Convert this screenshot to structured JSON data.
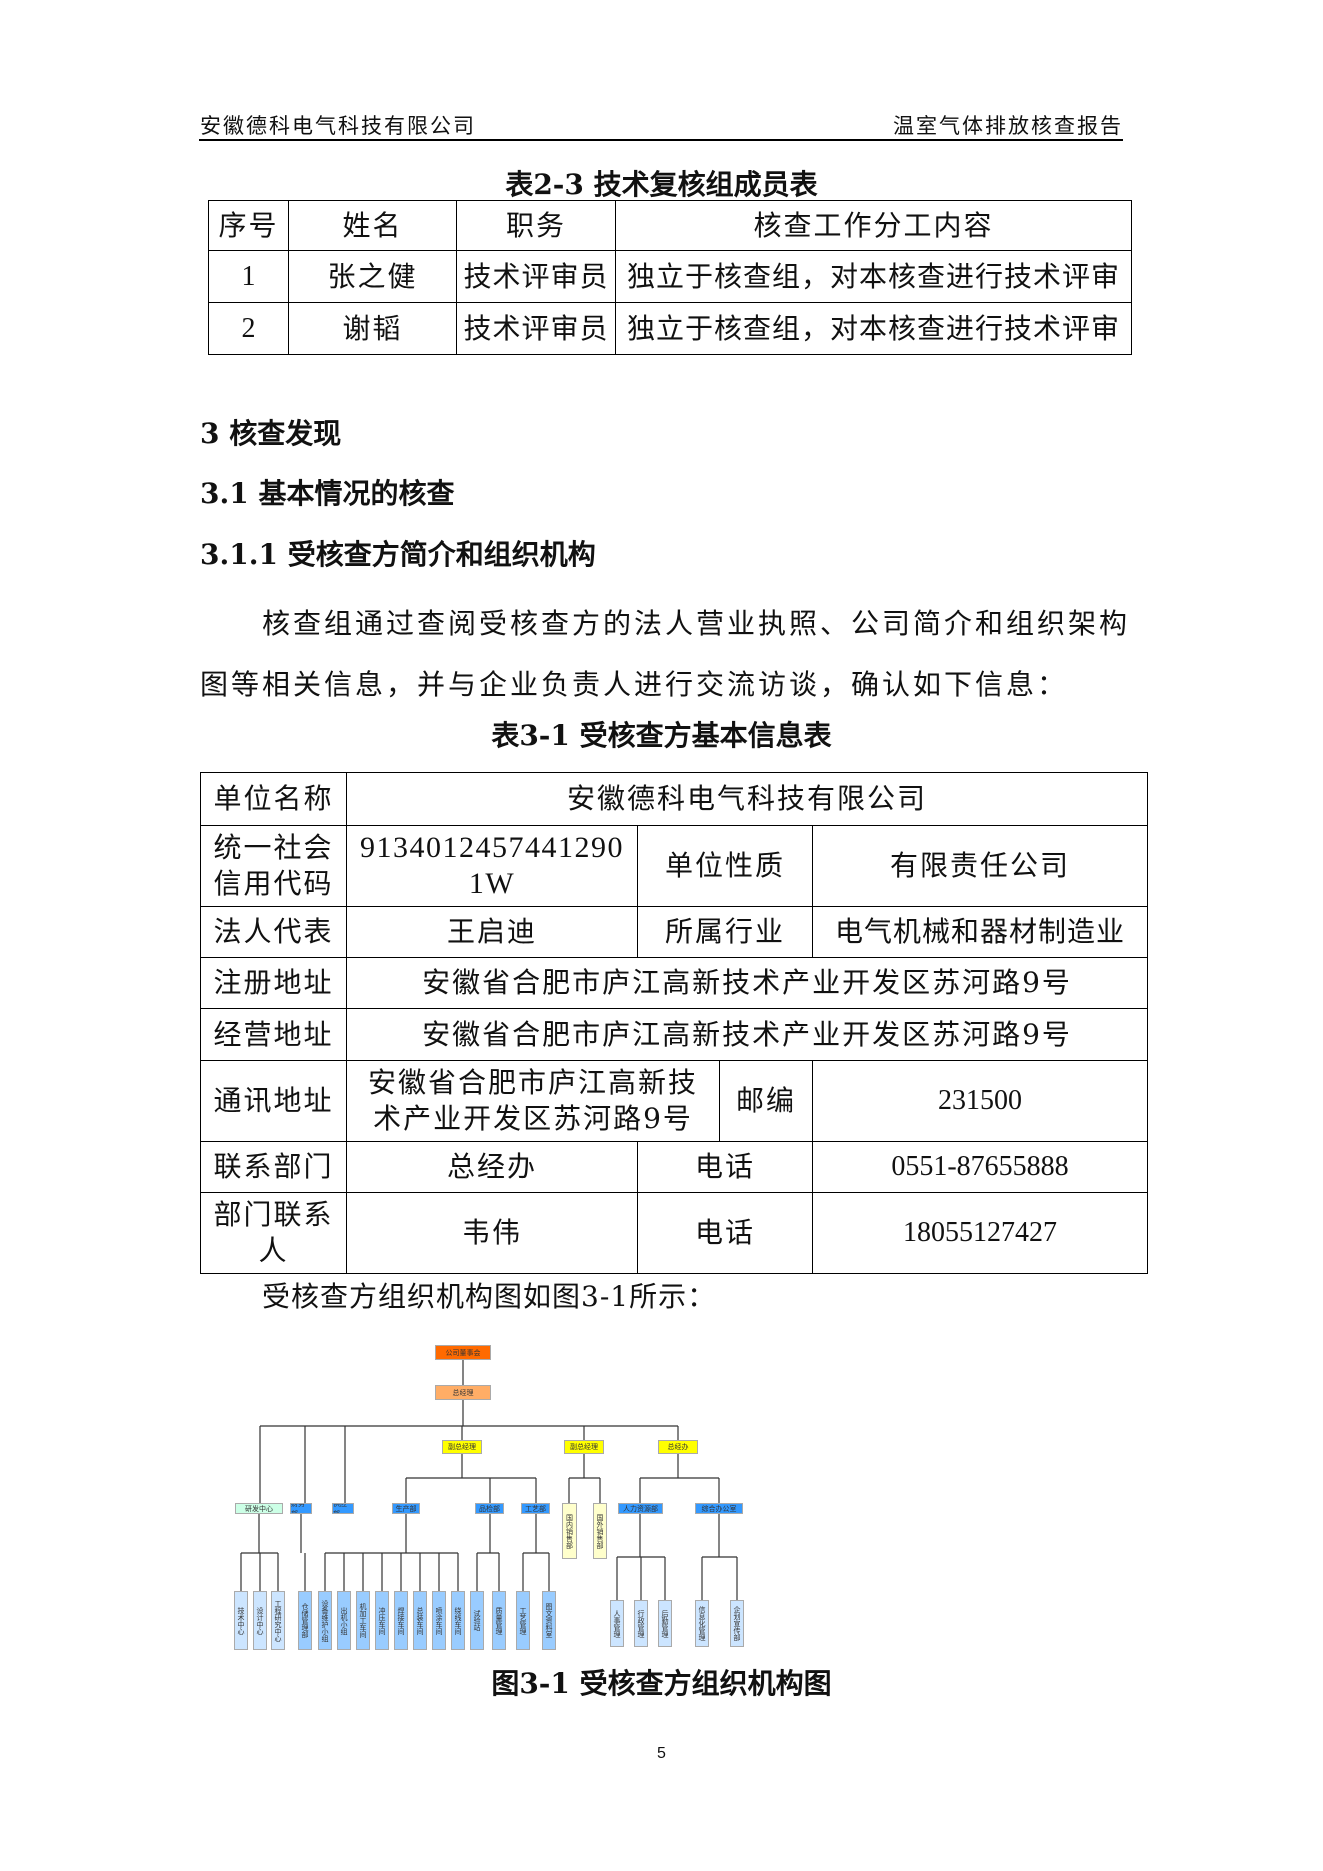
{
  "header": {
    "company": "安徽德科电气科技有限公司",
    "report": "温室气体排放核查报告"
  },
  "table23": {
    "caption": "表2-3  技术复核组成员表",
    "headers": [
      "序号",
      "姓名",
      "职务",
      "核查工作分工内容"
    ],
    "rows": [
      [
        "1",
        "张之健",
        "技术评审员",
        "独立于核查组，对本核查进行技术评审"
      ],
      [
        "2",
        "谢韬",
        "技术评审员",
        "独立于核查组，对本核查进行技术评审"
      ]
    ]
  },
  "sections": {
    "s3": "3  核查发现",
    "s31": "3.1  基本情况的核查",
    "s311": "3.1.1  受核查方简介和组织机构"
  },
  "para1": "核查组通过查阅受核查方的法人营业执照、公司简介和组织架构图等相关信息，并与企业负责人进行交流访谈，确认如下信息：",
  "table31": {
    "caption": "表3-1  受核查方基本信息表",
    "unit_name_label": "单位名称",
    "unit_name": "安徽德科电气科技有限公司",
    "credit_label": "统一社会信用代码",
    "credit": "91340124574412901W",
    "nature_label": "单位性质",
    "nature": "有限责任公司",
    "legal_label": "法人代表",
    "legal": "王启迪",
    "industry_label": "所属行业",
    "industry": "电气机械和器材制造业",
    "reg_addr_label": "注册地址",
    "reg_addr": "安徽省合肥市庐江高新技术产业开发区苏河路9号",
    "op_addr_label": "经营地址",
    "op_addr": "安徽省合肥市庐江高新技术产业开发区苏河路9号",
    "mail_addr_label": "通讯地址",
    "mail_addr": "安徽省合肥市庐江高新技术产业开发区苏河路9号",
    "post_label": "邮编",
    "post": "231500",
    "dept_label": "联系部门",
    "dept": "总经办",
    "phone_label": "电话",
    "dept_phone": "0551-87655888",
    "contact_label": "部门联系人",
    "contact": "韦伟",
    "contact_phone": "18055127427"
  },
  "para2": "受核查方组织机构图如图3-1所示：",
  "org_chart": {
    "colors": {
      "top": "#ff6a00",
      "gm": "#ffad66",
      "vp": "#ffff00",
      "dept": "#3399ff",
      "leaf": "#99ccff",
      "rnd": "#ccffe6",
      "sales": "#ffffcc",
      "leafpale": "#cce5ff"
    },
    "top": "公司董事会",
    "gm": "总经理",
    "vps": [
      "副总经理",
      "副总经理",
      "总经办"
    ],
    "depts": [
      "研发中心",
      "财务部",
      "供应部",
      "生产部",
      "品检部",
      "工艺部",
      "国内销售部",
      "国外销售部",
      "人力资源部",
      "综合办公室"
    ],
    "leaves": {
      "研发中心": [
        "技术中心",
        "设计中心",
        "工程研究中心"
      ],
      "财务部": [
        "仓储管理部"
      ],
      "生产部": [
        "设备维护小组",
        "出机小组",
        "机加工车间",
        "冲压车间",
        "焊接车间",
        "总装车间",
        "喷涂车间",
        "绕线车间"
      ],
      "品检部": [
        "试验站",
        "质量管理"
      ],
      "工艺部": [
        "工艺管理",
        "图文资料室"
      ],
      "人力资源部": [
        "人事管理",
        "行政管理",
        "后勤管理"
      ],
      "综合办公室": [
        "信息化管理",
        "企划宣传部"
      ]
    }
  },
  "figure_caption": "图3-1  受核查方组织机构图",
  "page_number": "5"
}
